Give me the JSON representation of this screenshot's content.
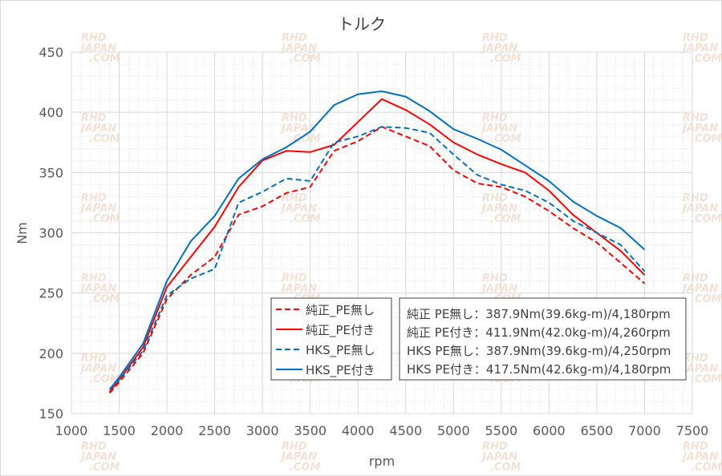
{
  "chart_data": {
    "type": "line",
    "title": "トルク",
    "xlabel": "rpm",
    "ylabel": "Nm",
    "xlim": [
      1000,
      7500
    ],
    "ylim": [
      150,
      450
    ],
    "xticks": [
      1000,
      1500,
      2000,
      2500,
      3000,
      3500,
      4000,
      4500,
      5000,
      5500,
      6000,
      6500,
      7000,
      7500
    ],
    "yticks": [
      150,
      200,
      250,
      300,
      350,
      400,
      450
    ],
    "grid": true,
    "legend_placement": "bottom-center",
    "x": [
      1400,
      1500,
      1750,
      2000,
      2250,
      2500,
      2750,
      3000,
      3250,
      3500,
      3750,
      4000,
      4250,
      4500,
      4750,
      5000,
      5250,
      5500,
      5750,
      6000,
      6250,
      6500,
      6750,
      7000
    ],
    "series": [
      {
        "name": "純正_PE無し",
        "color": "#ff0000",
        "dash": true,
        "values": [
          167,
          176,
          200,
          245,
          265,
          280,
          315,
          322,
          333,
          338,
          368,
          376,
          388,
          380,
          372,
          352,
          341,
          338,
          330,
          318,
          304,
          292,
          275,
          258
        ]
      },
      {
        "name": "純正_PE付き",
        "color": "#ff0000",
        "dash": false,
        "values": [
          168,
          178,
          205,
          255,
          280,
          305,
          338,
          360,
          368,
          367,
          373,
          392,
          411,
          402,
          390,
          375,
          365,
          357,
          350,
          335,
          315,
          300,
          285,
          265
        ]
      },
      {
        "name": "HKS_PE無し",
        "color": "#0070c0",
        "dash": true,
        "values": [
          170,
          178,
          202,
          248,
          262,
          270,
          325,
          334,
          345,
          343,
          375,
          380,
          388,
          387,
          383,
          365,
          348,
          340,
          335,
          325,
          310,
          300,
          290,
          268
        ]
      },
      {
        "name": "HKS_PE付き",
        "color": "#0070c0",
        "dash": false,
        "values": [
          170,
          180,
          208,
          260,
          293,
          314,
          345,
          361,
          371,
          384,
          406,
          415,
          417.5,
          413,
          401,
          386,
          378,
          369,
          356,
          343,
          326,
          314,
          304,
          286
        ]
      }
    ],
    "annotations": [
      "純正 PE無し：387.9Nm(39.6kg-m)/4,180rpm",
      "純正 PE付き：411.9Nm(42.0kg-m)/4,260rpm",
      "HKS PE無し：387.9Nm(39.6kg-m)/4,250rpm",
      "HKS PE付き：417.5Nm(42.6kg-m)/4,180rpm"
    ],
    "watermark": "RHD JAPAN .COM"
  }
}
